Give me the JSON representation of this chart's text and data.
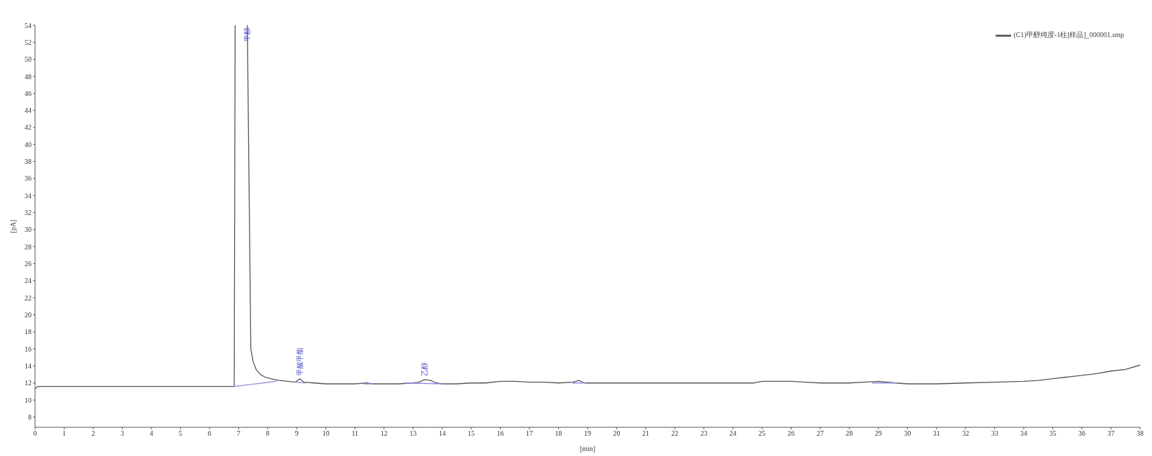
{
  "chart_data": {
    "type": "line",
    "xlabel": "[min]",
    "ylabel": "[pA]",
    "xlim": [
      0,
      38
    ],
    "xticks": [
      0,
      1,
      2,
      3,
      4,
      5,
      6,
      7,
      8,
      9,
      10,
      11,
      12,
      13,
      14,
      15,
      16,
      17,
      18,
      19,
      20,
      21,
      22,
      23,
      24,
      25,
      26,
      27,
      28,
      29,
      30,
      31,
      32,
      33,
      34,
      35,
      36,
      37,
      38
    ],
    "ylim": [
      6.8,
      54
    ],
    "yticks": [
      8,
      10,
      12,
      14,
      16,
      18,
      20,
      22,
      24,
      26,
      28,
      30,
      32,
      34,
      36,
      38,
      40,
      42,
      44,
      46,
      48,
      50,
      52,
      54
    ],
    "grid": false,
    "legend": "top right",
    "marker": "none",
    "line_style": "solid",
    "series": [
      {
        "name": "(C1)甲醇纯度-1柱[样品]_000001.smp",
        "color": "#555555",
        "x": [
          0,
          0.1,
          1,
          2,
          3,
          4,
          5,
          6,
          6.85,
          6.88,
          7.1,
          7.3,
          7.42,
          7.5,
          7.6,
          7.75,
          7.9,
          8.1,
          8.4,
          8.7,
          8.95,
          9.1,
          9.25,
          9.6,
          10,
          10.5,
          11,
          11.4,
          11.6,
          12,
          12.5,
          13,
          13.2,
          13.4,
          13.6,
          13.8,
          14,
          14.5,
          15,
          15.5,
          16,
          16.5,
          17,
          17.5,
          18,
          18.5,
          18.7,
          18.9,
          19.5,
          20,
          21,
          22,
          23,
          24,
          24.7,
          25,
          25.5,
          26,
          26.5,
          27,
          27.5,
          28,
          28.5,
          29,
          29.3,
          29.6,
          30,
          31,
          32,
          33,
          34,
          34.5,
          35,
          35.5,
          36,
          36.5,
          37,
          37.5,
          38
        ],
        "values": [
          11.3,
          11.6,
          11.6,
          11.6,
          11.6,
          11.6,
          11.6,
          11.6,
          11.6,
          54,
          null,
          54,
          16,
          14.5,
          13.6,
          13.0,
          12.7,
          12.5,
          12.3,
          12.2,
          12.1,
          12.5,
          12.1,
          12.0,
          11.9,
          11.9,
          11.9,
          12.0,
          11.9,
          11.9,
          11.9,
          12.0,
          12.1,
          12.4,
          12.3,
          12.0,
          11.9,
          11.9,
          12.0,
          12.0,
          12.2,
          12.2,
          12.1,
          12.1,
          12.0,
          12.1,
          12.3,
          12.0,
          12.0,
          12.0,
          12.0,
          12.0,
          12.0,
          12.0,
          12.0,
          12.2,
          12.2,
          12.2,
          12.1,
          12.0,
          12.0,
          12.0,
          12.1,
          12.2,
          12.1,
          12.0,
          11.9,
          11.9,
          12.0,
          12.1,
          12.2,
          12.3,
          12.5,
          12.7,
          12.9,
          13.1,
          13.4,
          13.6,
          14.1
        ]
      },
      {
        "color": "#8c8ce6",
        "x": [
          6.87,
          8.3,
          8.6,
          8.95,
          9.3,
          9.5,
          11.3,
          11.6,
          12.0,
          12.7,
          14.0,
          16,
          18.5,
          18.9,
          22,
          28.8,
          29.6
        ],
        "values": [
          11.6,
          12.2,
          null,
          12.1,
          12.0,
          null,
          11.9,
          11.9,
          null,
          12.0,
          11.9,
          null,
          12.0,
          12.0,
          null,
          12.0,
          12.0
        ]
      }
    ],
    "annotations": [
      {
        "text": "甲醇",
        "x": 7.3,
        "y": 54
      },
      {
        "text": "甲酸甲酯",
        "x": 9.1,
        "y": 12.5
      },
      {
        "text": "乙醇",
        "x": 13.4,
        "y": 12.4
      }
    ]
  }
}
